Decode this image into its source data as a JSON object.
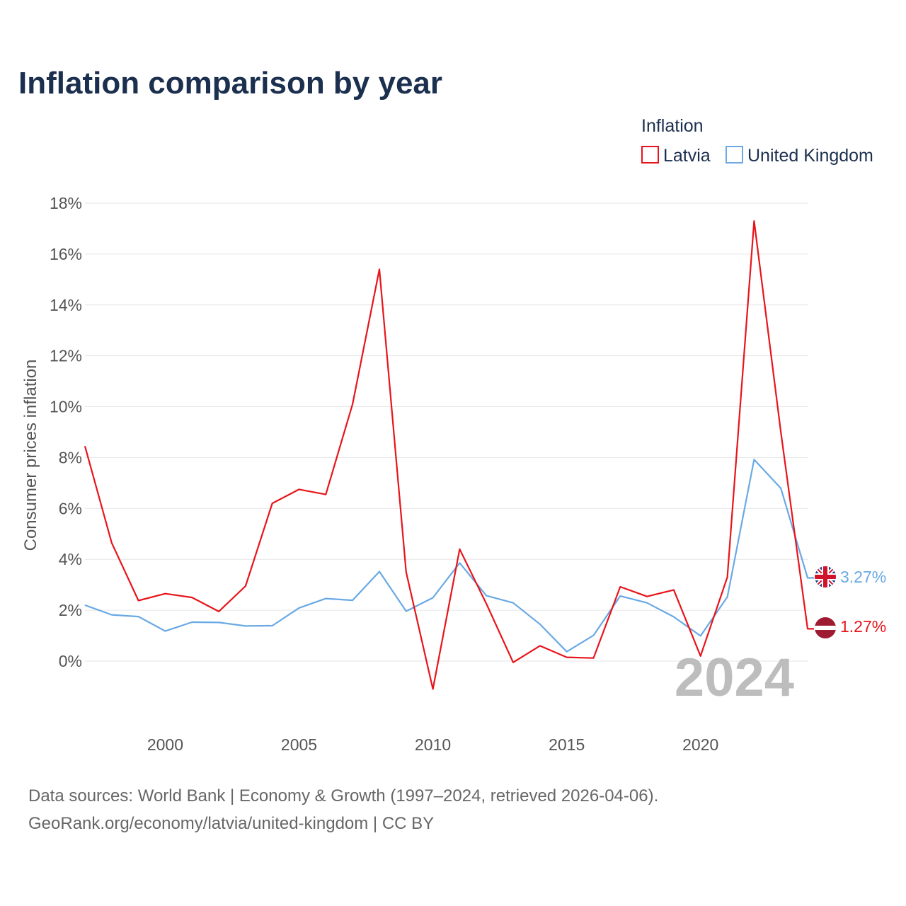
{
  "chart_data": {
    "type": "line",
    "title": "Inflation comparison by year",
    "legend_title": "Inflation",
    "ylabel": "Consumer prices inflation",
    "xlabel": "",
    "xlim": [
      1997,
      2024
    ],
    "ylim": [
      -2,
      18
    ],
    "y_ticks": [
      0,
      2,
      4,
      6,
      8,
      10,
      12,
      14,
      16,
      18
    ],
    "y_tick_labels": [
      "0%",
      "2%",
      "4%",
      "6%",
      "8%",
      "10%",
      "12%",
      "14%",
      "16%",
      "18%"
    ],
    "x_ticks": [
      2000,
      2005,
      2010,
      2015,
      2020
    ],
    "x_tick_labels": [
      "2000",
      "2005",
      "2010",
      "2015",
      "2020"
    ],
    "x": [
      1997,
      1998,
      1999,
      2000,
      2001,
      2002,
      2003,
      2004,
      2005,
      2006,
      2007,
      2008,
      2009,
      2010,
      2011,
      2012,
      2013,
      2014,
      2015,
      2016,
      2017,
      2018,
      2019,
      2020,
      2021,
      2022,
      2023,
      2024
    ],
    "series": [
      {
        "name": "Latvia",
        "color": "#e8141b",
        "values": [
          8.45,
          4.65,
          2.38,
          2.65,
          2.5,
          1.95,
          2.95,
          6.2,
          6.75,
          6.55,
          10.1,
          15.4,
          3.5,
          -1.1,
          4.4,
          2.25,
          -0.05,
          0.6,
          0.15,
          0.12,
          2.92,
          2.54,
          2.8,
          0.2,
          3.3,
          17.3,
          9.0,
          1.27
        ],
        "end_label": "1.27%",
        "flag": "latvia-flag"
      },
      {
        "name": "United Kingdom",
        "color": "#69a9e4",
        "values": [
          2.2,
          1.82,
          1.75,
          1.18,
          1.53,
          1.52,
          1.38,
          1.39,
          2.09,
          2.46,
          2.39,
          3.52,
          1.96,
          2.49,
          3.86,
          2.57,
          2.29,
          1.45,
          0.37,
          1.01,
          2.56,
          2.29,
          1.74,
          0.99,
          2.52,
          7.92,
          6.79,
          3.27
        ],
        "end_label": "3.27%",
        "flag": "uk-flag"
      }
    ],
    "watermark_year": "2024",
    "grid": true,
    "legend_position": "top-right"
  },
  "footer": {
    "line1": "Data sources: World Bank | Economy & Growth (1997–2024, retrieved 2026-04-06).",
    "line2": "GeoRank.org/economy/latvia/united-kingdom | CC BY"
  }
}
